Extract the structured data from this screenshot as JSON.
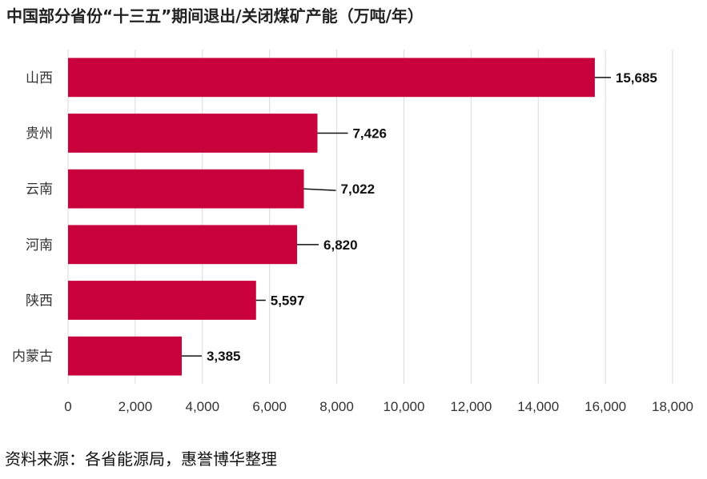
{
  "title": "中国部分省份“十三五”期间退出/关闭煤矿产能（万吨/年）",
  "source": "资料来源：各省能源局，惠誉博华整理",
  "chart_data": {
    "type": "bar",
    "orientation": "horizontal",
    "categories": [
      "山西",
      "贵州",
      "云南",
      "河南",
      "陕西",
      "内蒙古"
    ],
    "values": [
      15685,
      7426,
      7022,
      6820,
      5597,
      3385
    ],
    "value_labels": [
      "15,685",
      "7,426",
      "7,022",
      "6,820",
      "5,597",
      "3,385"
    ],
    "xlim": [
      0,
      18000
    ],
    "xticks": [
      0,
      2000,
      4000,
      6000,
      8000,
      10000,
      12000,
      14000,
      16000,
      18000
    ],
    "xtick_labels": [
      "0",
      "2,000",
      "4,000",
      "6,000",
      "8,000",
      "10,000",
      "12,000",
      "14,000",
      "16,000",
      "18,000"
    ],
    "grid": true,
    "bar_color": "#C8003C"
  }
}
